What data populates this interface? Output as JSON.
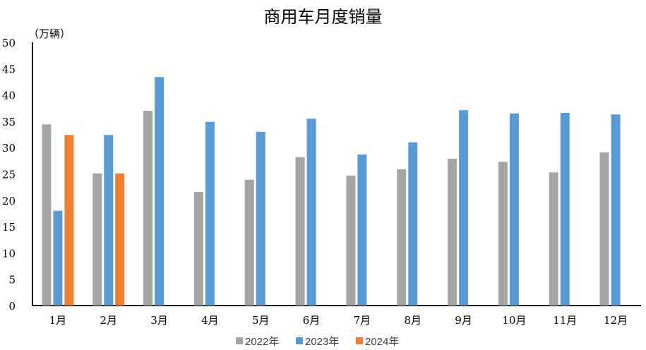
{
  "chart_data": {
    "type": "bar",
    "title": "商用车月度销量",
    "ylabel": "（万辆）",
    "xlabel": "",
    "ylim": [
      0,
      50
    ],
    "yticks": [
      0,
      5,
      10,
      15,
      20,
      25,
      30,
      35,
      40,
      45,
      50
    ],
    "categories": [
      "1月",
      "2月",
      "3月",
      "4月",
      "5月",
      "6月",
      "7月",
      "8月",
      "9月",
      "10月",
      "11月",
      "12月"
    ],
    "legend_position": "bottom",
    "grid": false,
    "series": [
      {
        "name": "2022年",
        "color": "#A5A5A5",
        "values": [
          34.4,
          25.1,
          37.0,
          21.6,
          23.9,
          28.2,
          24.7,
          25.9,
          27.9,
          27.3,
          25.3,
          29.1
        ]
      },
      {
        "name": "2023年",
        "color": "#5B9BD5",
        "values": [
          18.0,
          32.4,
          43.4,
          34.9,
          33.0,
          35.5,
          28.7,
          31.0,
          37.1,
          36.5,
          36.6,
          36.3
        ]
      },
      {
        "name": "2024年",
        "color": "#ED7D31",
        "values": [
          32.4,
          25.1,
          null,
          null,
          null,
          null,
          null,
          null,
          null,
          null,
          null,
          null
        ]
      }
    ]
  }
}
